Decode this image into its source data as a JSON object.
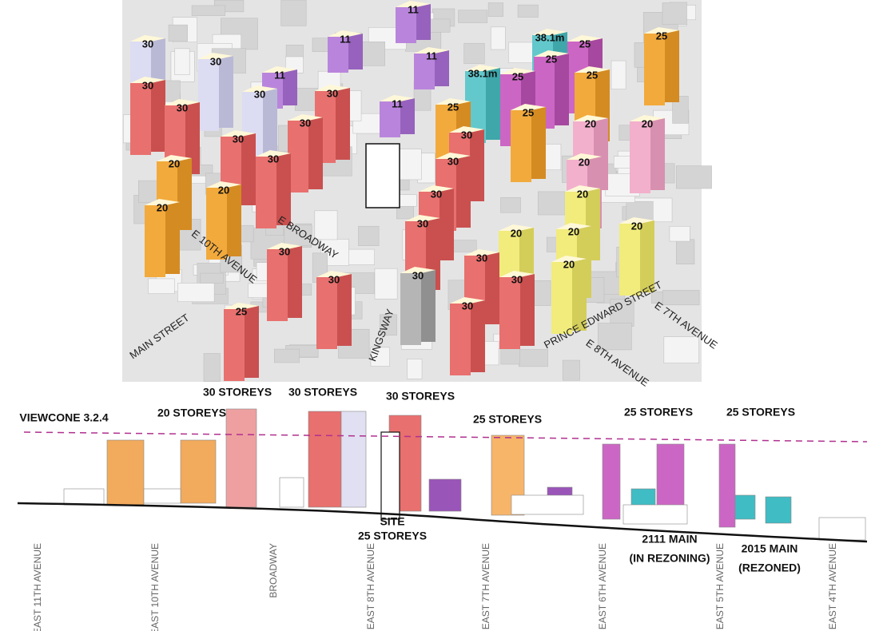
{
  "map": {
    "tower_labels": [
      "11",
      "30",
      "11",
      "38.1m",
      "25",
      "25",
      "30",
      "11",
      "25",
      "11",
      "38.1m",
      "25",
      "25",
      "30",
      "30",
      "30",
      "11",
      "25",
      "30",
      "25",
      "30",
      "20",
      "20",
      "30",
      "30",
      "20",
      "30",
      "30",
      "20",
      "20",
      "30",
      "20",
      "20",
      "30",
      "20",
      "20",
      "20",
      "30",
      "30",
      "20",
      "30",
      "30",
      "30",
      "30",
      "25"
    ],
    "streets": [
      "E BROADWAY",
      "E 10TH AVENUE",
      "MAIN STREET",
      "KINGSWAY",
      "PRINCE EDWARD STREET",
      "E 8TH AVENUE",
      "E 7TH AVENUE"
    ]
  },
  "section": {
    "viewcone": "VIEWCONE 3.2.4",
    "height_labels": [
      "30 STOREYS",
      "30 STOREYS",
      "30 STOREYS",
      "20 STOREYS",
      "25 STOREYS",
      "25 STOREYS",
      "25 STOREYS"
    ],
    "site": [
      "SITE",
      "25 STOREYS"
    ],
    "annotations": [
      [
        "2111 MAIN",
        "(IN REZONING)"
      ],
      [
        "2015 MAIN",
        "(REZONED)"
      ]
    ],
    "avenues": [
      "EAST 11TH AVENUE",
      "EAST 10TH AVENUE",
      "BROADWAY",
      "EAST 8TH AVENUE",
      "EAST 7TH AVENUE",
      "EAST 6TH AVENUE",
      "EAST 5TH AVENUE",
      "EAST 4TH AVENUE"
    ]
  }
}
